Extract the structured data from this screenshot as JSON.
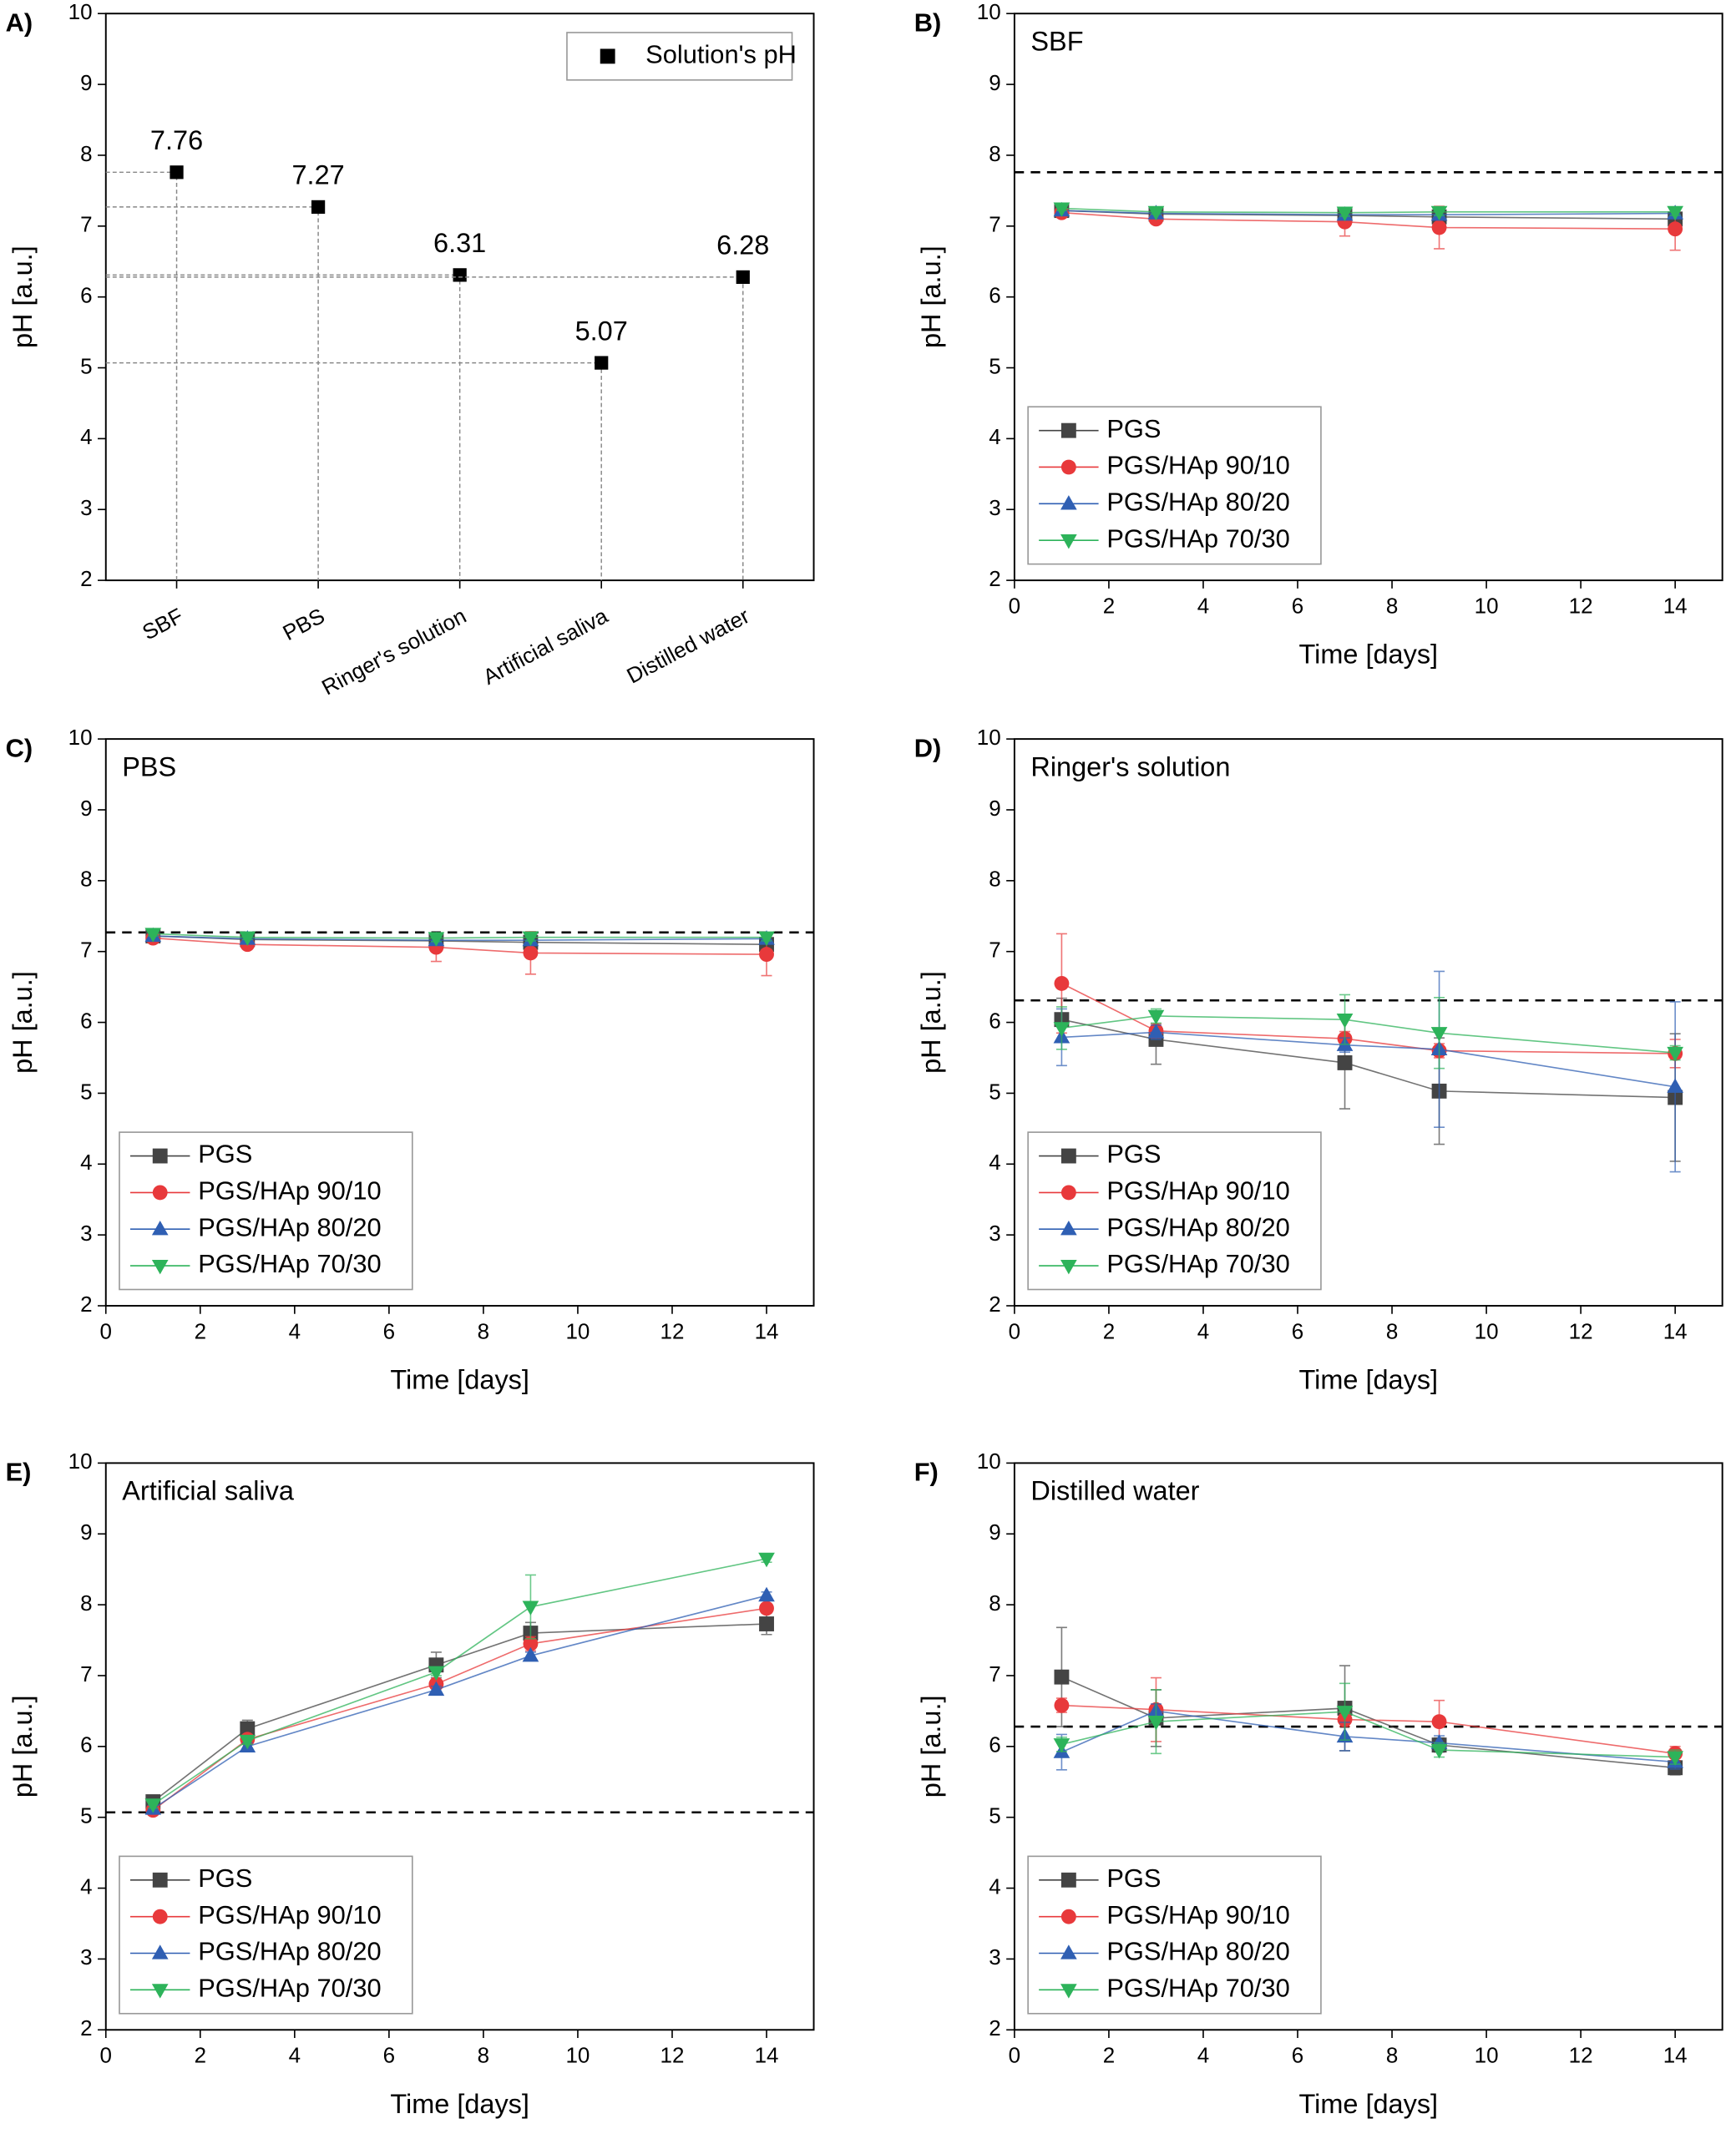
{
  "chart_data": [
    {
      "type": "scatter",
      "label": "A)",
      "ylabel": "pH [a.u.]",
      "ylim": [
        2,
        10
      ],
      "yticks": [
        2,
        3,
        4,
        5,
        6,
        7,
        8,
        9,
        10
      ],
      "legend": "upper right",
      "categories": [
        "SBF",
        "PBS",
        "Ringer's solution",
        "Artificial saliva",
        "Distilled water"
      ],
      "series": [
        {
          "name": "Solution's pH",
          "color": "#000000",
          "marker": "square",
          "values": [
            7.76,
            7.27,
            6.31,
            5.07,
            6.28
          ]
        }
      ]
    },
    {
      "type": "line",
      "label": "B)",
      "title": "SBF",
      "xlabel": "Time [days]",
      "ylabel": "pH [a.u.]",
      "xlim": [
        0,
        15
      ],
      "xticks": [
        0,
        2,
        4,
        6,
        8,
        10,
        12,
        14
      ],
      "ylim": [
        2,
        10
      ],
      "yticks": [
        2,
        3,
        4,
        5,
        6,
        7,
        8,
        9,
        10
      ],
      "reference": 7.76,
      "legend": "lower left",
      "x": [
        1,
        3,
        7,
        9,
        14
      ],
      "series": [
        {
          "name": "PGS",
          "color": "#444444",
          "marker": "square",
          "values": [
            7.22,
            7.17,
            7.15,
            7.13,
            7.1
          ],
          "errors": [
            0.03,
            0.03,
            0.05,
            0.05,
            0.05
          ]
        },
        {
          "name": "PGS/HAp 90/10",
          "color": "#e8393b",
          "marker": "circle",
          "values": [
            7.19,
            7.1,
            7.06,
            6.98,
            6.96
          ],
          "errors": [
            0.05,
            0.05,
            0.2,
            0.3,
            0.3
          ]
        },
        {
          "name": "PGS/HAp 80/20",
          "color": "#2f5fb3",
          "marker": "triangle-up",
          "values": [
            7.22,
            7.18,
            7.16,
            7.16,
            7.18
          ],
          "errors": [
            0.03,
            0.03,
            0.05,
            0.05,
            0.05
          ]
        },
        {
          "name": "PGS/HAp 70/30",
          "color": "#2db35a",
          "marker": "triangle-down",
          "values": [
            7.25,
            7.2,
            7.19,
            7.2,
            7.2
          ],
          "errors": [
            0.03,
            0.03,
            0.05,
            0.05,
            0.05
          ]
        }
      ]
    },
    {
      "type": "line",
      "label": "C)",
      "title": "PBS",
      "xlabel": "Time [days]",
      "ylabel": "pH [a.u.]",
      "xlim": [
        0,
        15
      ],
      "xticks": [
        0,
        2,
        4,
        6,
        8,
        10,
        12,
        14
      ],
      "ylim": [
        2,
        10
      ],
      "yticks": [
        2,
        3,
        4,
        5,
        6,
        7,
        8,
        9,
        10
      ],
      "reference": 7.27,
      "legend": "lower left",
      "x": [
        1,
        3,
        7,
        9,
        14
      ],
      "series": [
        {
          "name": "PGS",
          "color": "#444444",
          "marker": "square",
          "values": [
            7.22,
            7.17,
            7.15,
            7.13,
            7.1
          ],
          "errors": [
            0.03,
            0.03,
            0.05,
            0.05,
            0.05
          ]
        },
        {
          "name": "PGS/HAp 90/10",
          "color": "#e8393b",
          "marker": "circle",
          "values": [
            7.19,
            7.1,
            7.06,
            6.98,
            6.96
          ],
          "errors": [
            0.05,
            0.05,
            0.2,
            0.3,
            0.3
          ]
        },
        {
          "name": "PGS/HAp 80/20",
          "color": "#2f5fb3",
          "marker": "triangle-up",
          "values": [
            7.22,
            7.18,
            7.16,
            7.16,
            7.18
          ],
          "errors": [
            0.03,
            0.03,
            0.05,
            0.05,
            0.05
          ]
        },
        {
          "name": "PGS/HAp 70/30",
          "color": "#2db35a",
          "marker": "triangle-down",
          "values": [
            7.25,
            7.2,
            7.19,
            7.2,
            7.2
          ],
          "errors": [
            0.03,
            0.03,
            0.05,
            0.05,
            0.05
          ]
        }
      ]
    },
    {
      "type": "line",
      "label": "D)",
      "title": "Ringer's solution",
      "xlabel": "Time [days]",
      "ylabel": "pH [a.u.]",
      "xlim": [
        0,
        15
      ],
      "xticks": [
        0,
        2,
        4,
        6,
        8,
        10,
        12,
        14
      ],
      "ylim": [
        2,
        10
      ],
      "yticks": [
        2,
        3,
        4,
        5,
        6,
        7,
        8,
        9,
        10
      ],
      "reference": 6.31,
      "legend": "lower left",
      "x": [
        1,
        3,
        7,
        9,
        14
      ],
      "series": [
        {
          "name": "PGS",
          "color": "#444444",
          "marker": "square",
          "values": [
            6.04,
            5.76,
            5.43,
            5.03,
            4.94
          ],
          "errors": [
            0.3,
            0.35,
            0.65,
            0.75,
            0.9
          ]
        },
        {
          "name": "PGS/HAp 90/10",
          "color": "#e8393b",
          "marker": "circle",
          "values": [
            6.55,
            5.88,
            5.77,
            5.6,
            5.56
          ],
          "errors": [
            0.7,
            0.1,
            0.1,
            0.1,
            0.2
          ]
        },
        {
          "name": "PGS/HAp 80/20",
          "color": "#2f5fb3",
          "marker": "triangle-up",
          "values": [
            5.79,
            5.86,
            5.68,
            5.62,
            5.09
          ],
          "errors": [
            0.4,
            0.1,
            0.1,
            1.1,
            1.2
          ]
        },
        {
          "name": "PGS/HAp 70/30",
          "color": "#2db35a",
          "marker": "triangle-down",
          "values": [
            5.92,
            6.09,
            6.04,
            5.85,
            5.57
          ],
          "errors": [
            0.3,
            0.1,
            0.35,
            0.5,
            0.1
          ]
        }
      ]
    },
    {
      "type": "line",
      "label": "E)",
      "title": "Artificial saliva",
      "xlabel": "Time [days]",
      "ylabel": "pH [a.u.]",
      "xlim": [
        0,
        15
      ],
      "xticks": [
        0,
        2,
        4,
        6,
        8,
        10,
        12,
        14
      ],
      "ylim": [
        2,
        10
      ],
      "yticks": [
        2,
        3,
        4,
        5,
        6,
        7,
        8,
        9,
        10
      ],
      "reference": 5.07,
      "legend": "lower left",
      "x": [
        1,
        3,
        7,
        9,
        14
      ],
      "series": [
        {
          "name": "PGS",
          "color": "#444444",
          "marker": "square",
          "values": [
            5.22,
            6.25,
            7.15,
            7.6,
            7.73
          ],
          "errors": [
            0.08,
            0.12,
            0.18,
            0.15,
            0.15
          ]
        },
        {
          "name": "PGS/HAp 90/10",
          "color": "#e8393b",
          "marker": "circle",
          "values": [
            5.1,
            6.1,
            6.88,
            7.45,
            7.95
          ],
          "errors": [
            0.05,
            0.05,
            0.05,
            0.1,
            0.05
          ]
        },
        {
          "name": "PGS/HAp 80/20",
          "color": "#2f5fb3",
          "marker": "triangle-up",
          "values": [
            5.12,
            6.0,
            6.8,
            7.28,
            8.13
          ],
          "errors": [
            0.05,
            0.05,
            0.05,
            0.05,
            0.05
          ]
        },
        {
          "name": "PGS/HAp 70/30",
          "color": "#2db35a",
          "marker": "triangle-down",
          "values": [
            5.18,
            6.08,
            7.05,
            7.97,
            8.65
          ],
          "errors": [
            0.05,
            0.05,
            0.05,
            0.45,
            0.05
          ]
        }
      ]
    },
    {
      "type": "line",
      "label": "F)",
      "title": "Distilled water",
      "xlabel": "Time [days]",
      "ylabel": "pH [a.u.]",
      "xlim": [
        0,
        15
      ],
      "xticks": [
        0,
        2,
        4,
        6,
        8,
        10,
        12,
        14
      ],
      "ylim": [
        2,
        10
      ],
      "yticks": [
        2,
        3,
        4,
        5,
        6,
        7,
        8,
        9,
        10
      ],
      "reference": 6.28,
      "legend": "lower left",
      "x": [
        1,
        3,
        7,
        9,
        14
      ],
      "series": [
        {
          "name": "PGS",
          "color": "#444444",
          "marker": "square",
          "values": [
            6.98,
            6.4,
            6.54,
            6.02,
            5.7
          ],
          "errors": [
            0.7,
            0.4,
            0.6,
            0.1,
            0.1
          ]
        },
        {
          "name": "PGS/HAp 90/10",
          "color": "#e8393b",
          "marker": "circle",
          "values": [
            6.58,
            6.52,
            6.38,
            6.35,
            5.9
          ],
          "errors": [
            0.1,
            0.45,
            0.1,
            0.3,
            0.1
          ]
        },
        {
          "name": "PGS/HAp 80/20",
          "color": "#2f5fb3",
          "marker": "triangle-up",
          "values": [
            5.92,
            6.5,
            6.14,
            6.05,
            5.78
          ],
          "errors": [
            0.25,
            0.1,
            0.2,
            0.1,
            0.1
          ]
        },
        {
          "name": "PGS/HAp 70/30",
          "color": "#2db35a",
          "marker": "triangle-down",
          "values": [
            6.03,
            6.35,
            6.49,
            5.95,
            5.85
          ],
          "errors": [
            0.1,
            0.45,
            0.4,
            0.1,
            0.1
          ]
        }
      ]
    }
  ]
}
